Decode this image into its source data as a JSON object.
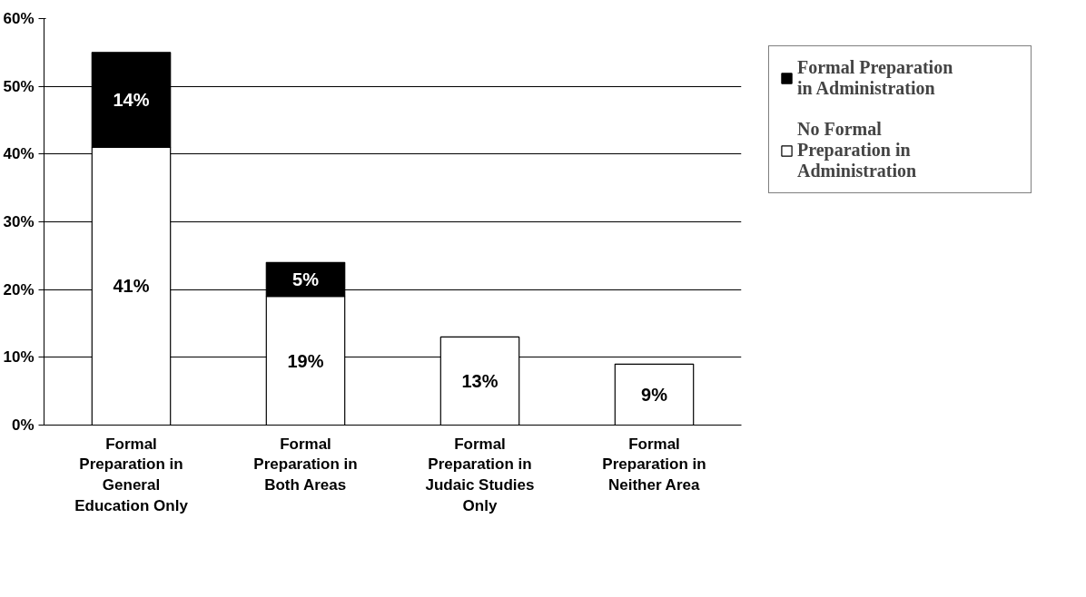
{
  "chart_data": {
    "type": "bar",
    "stacked": true,
    "categories": [
      "Formal Preparation in General Education Only",
      "Formal Preparation in Both Areas",
      "Formal Preparation in Judaic Studies Only",
      "Formal Preparation in Neither Area"
    ],
    "series": [
      {
        "name": "No Formal Preparation in Administration",
        "color": "#ffffff",
        "values": [
          41,
          19,
          13,
          9
        ],
        "value_labels": [
          "41%",
          "19%",
          "13%",
          "9%"
        ]
      },
      {
        "name": "Formal Preparation in Administration",
        "color": "#000000",
        "values": [
          14,
          5,
          null,
          null
        ],
        "value_labels": [
          "14%",
          "5%",
          null,
          null
        ]
      }
    ],
    "ylim": [
      0,
      60
    ],
    "yticks": [
      {
        "value": 0,
        "label": "0%"
      },
      {
        "value": 10,
        "label": "10%"
      },
      {
        "value": 20,
        "label": "20%"
      },
      {
        "value": 30,
        "label": "30%"
      },
      {
        "value": 40,
        "label": "40%"
      },
      {
        "value": 50,
        "label": "50%"
      },
      {
        "value": 60,
        "label": "60%"
      }
    ],
    "grid": "y",
    "legend": "right"
  }
}
